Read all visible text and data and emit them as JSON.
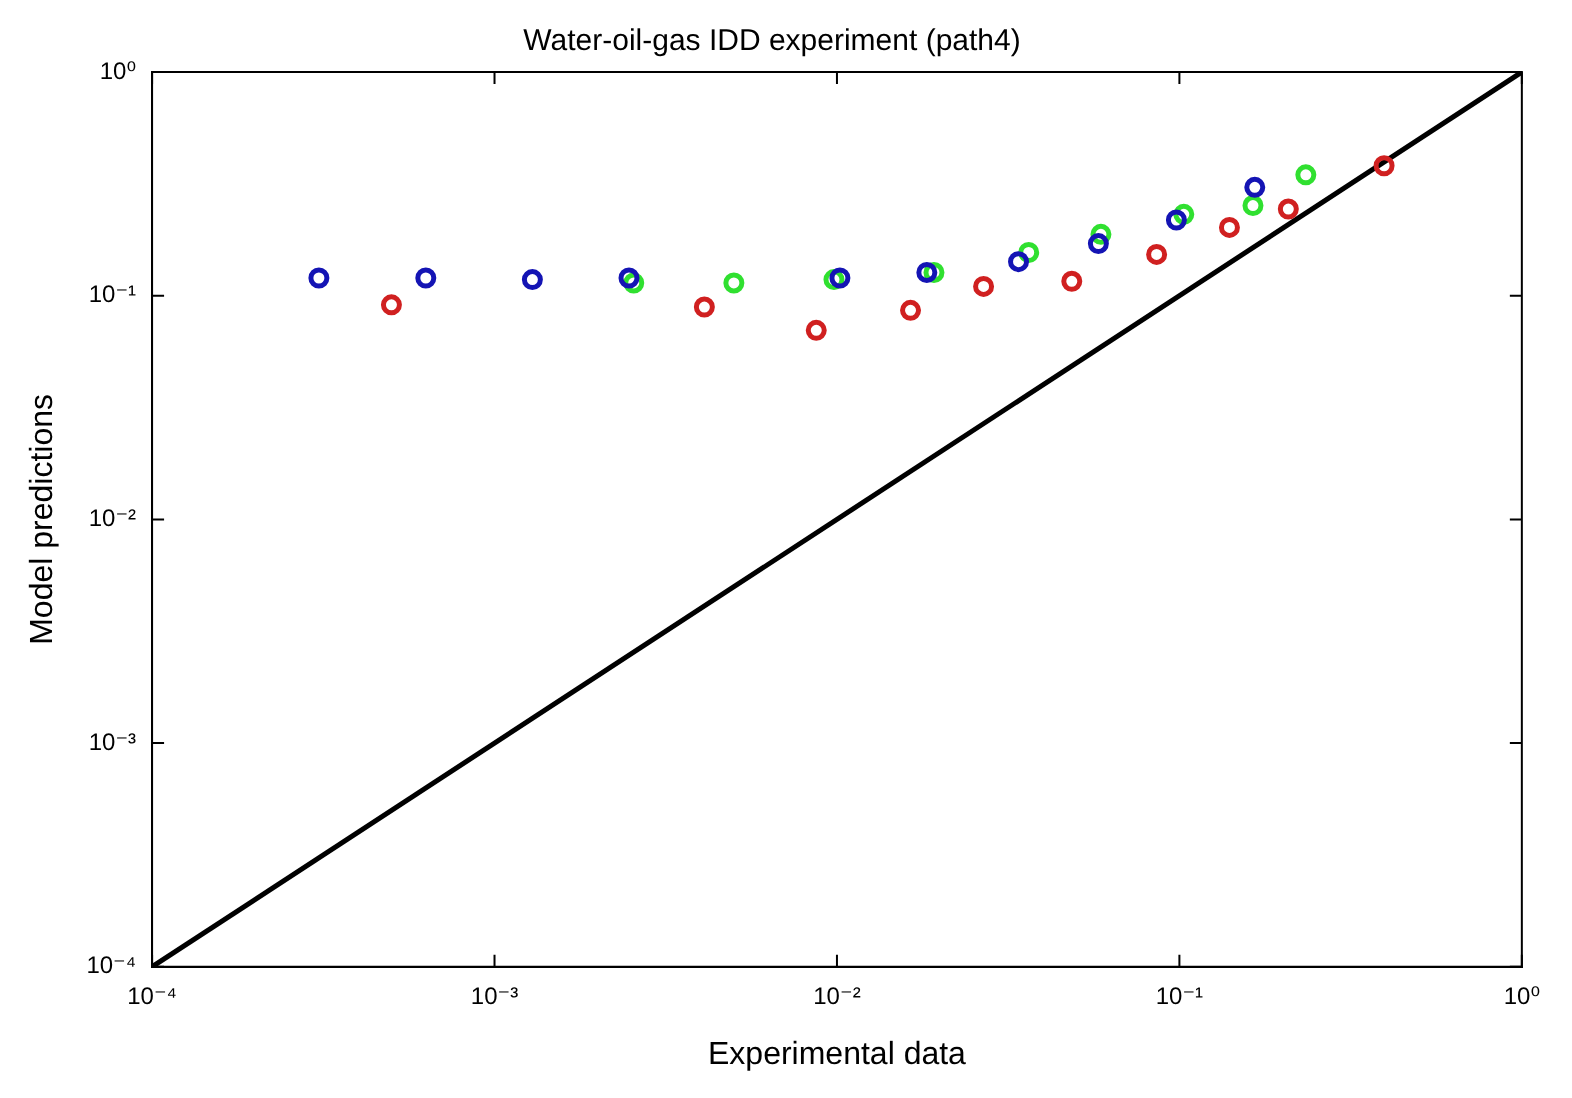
{
  "chart_data": {
    "type": "scatter",
    "title": "Water-oil-gas IDD experiment (path4)",
    "xlabel": "Experimental data",
    "ylabel": "Model predictions",
    "log": "xy",
    "marker": "circle",
    "grid": false,
    "legend": false,
    "xlim": [
      0.0001,
      1
    ],
    "ylim": [
      0.0001,
      1
    ],
    "xticks": [
      {
        "value": 0.0001,
        "label": "10⁻⁴"
      },
      {
        "value": 0.001,
        "label": "10⁻³"
      },
      {
        "value": 0.01,
        "label": "10⁻²"
      },
      {
        "value": 0.1,
        "label": "10⁻¹"
      },
      {
        "value": 1,
        "label": "10⁰"
      }
    ],
    "yticks": [
      {
        "value": 0.0001,
        "label": "10⁻⁴"
      },
      {
        "value": 0.001,
        "label": "10⁻³"
      },
      {
        "value": 0.01,
        "label": "10⁻²"
      },
      {
        "value": 0.1,
        "label": "10⁻¹"
      },
      {
        "value": 1,
        "label": "10⁰"
      }
    ],
    "series": [
      {
        "color": "#1414b4",
        "x": [
          0.000307,
          0.00063,
          0.00129,
          0.00247,
          0.0102,
          0.0183,
          0.0339,
          0.058,
          0.098,
          0.166
        ],
        "values": [
          0.12,
          0.12,
          0.118,
          0.12,
          0.12,
          0.127,
          0.142,
          0.171,
          0.218,
          0.305
        ]
      },
      {
        "color": "#d02020",
        "x": [
          0.0005,
          0.0041,
          0.0087,
          0.0164,
          0.0268,
          0.0485,
          0.0858,
          0.14,
          0.208,
          0.396
        ],
        "values": [
          0.091,
          0.089,
          0.07,
          0.086,
          0.11,
          0.116,
          0.153,
          0.202,
          0.244,
          0.381
        ]
      },
      {
        "color": "#30e030",
        "x": [
          0.00255,
          0.005,
          0.0098,
          0.0192,
          0.0363,
          0.059,
          0.103,
          0.164,
          0.234
        ],
        "values": [
          0.114,
          0.114,
          0.118,
          0.127,
          0.156,
          0.188,
          0.231,
          0.253,
          0.347
        ]
      },
      {
        "type": "line",
        "color": "#000000",
        "marker": "none",
        "line_style": "solid",
        "x": [
          0.0001,
          1
        ],
        "values": [
          0.0001,
          1
        ]
      }
    ]
  }
}
